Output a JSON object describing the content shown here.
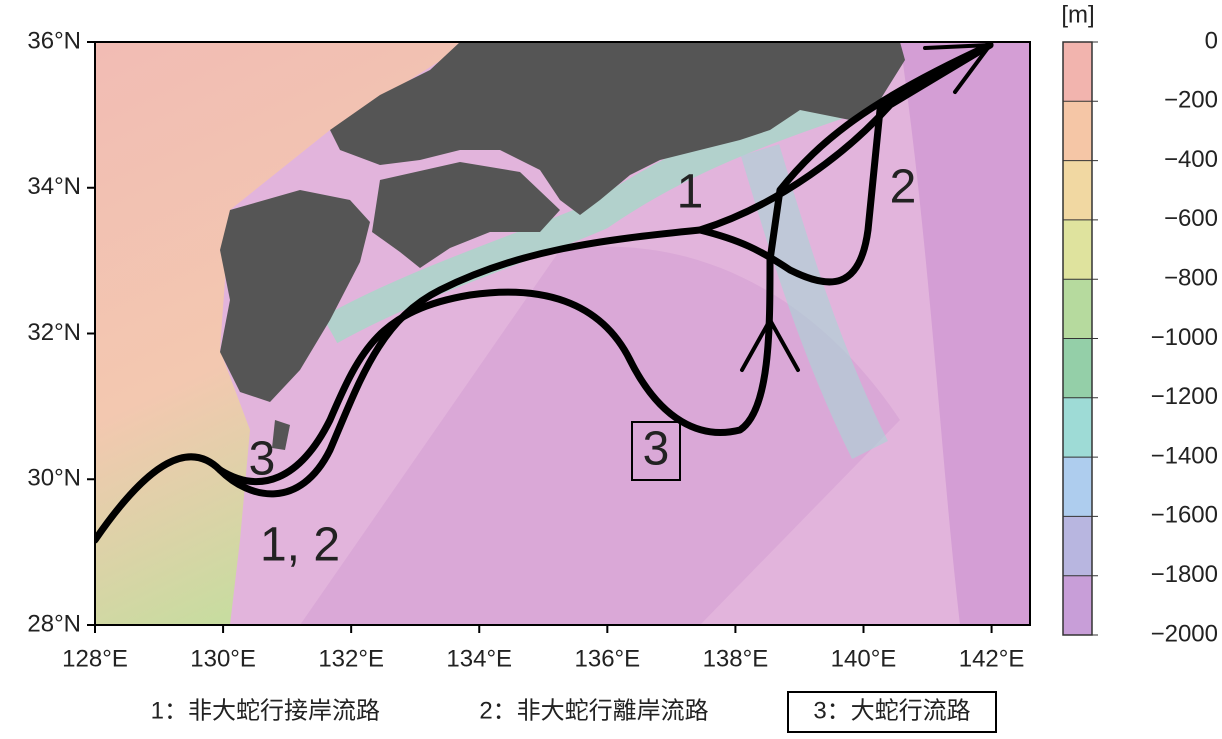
{
  "map": {
    "xlim": [
      128,
      142.6
    ],
    "ylim": [
      28,
      36
    ],
    "xticks": [
      {
        "value": 128,
        "label": "128°E"
      },
      {
        "value": 130,
        "label": "130°E"
      },
      {
        "value": 132,
        "label": "132°E"
      },
      {
        "value": 134,
        "label": "134°E"
      },
      {
        "value": 136,
        "label": "136°E"
      },
      {
        "value": 138,
        "label": "138°E"
      },
      {
        "value": 140,
        "label": "140°E"
      },
      {
        "value": 142,
        "label": "142°E"
      }
    ],
    "yticks": [
      {
        "value": 28,
        "label": "28°N"
      },
      {
        "value": 30,
        "label": "30°N"
      },
      {
        "value": 32,
        "label": "32°N"
      },
      {
        "value": 34,
        "label": "34°N"
      },
      {
        "value": 36,
        "label": "36°N"
      }
    ],
    "route_labels": [
      "1",
      "2",
      "3",
      "3",
      "1, 2"
    ],
    "colorbar": {
      "unit": "[m]",
      "lim": [
        -2000,
        0
      ],
      "ticks": [
        {
          "value": 0,
          "label": "0"
        },
        {
          "value": -200,
          "label": "−200"
        },
        {
          "value": -400,
          "label": "−400"
        },
        {
          "value": -600,
          "label": "−600"
        },
        {
          "value": -800,
          "label": "−800"
        },
        {
          "value": -1000,
          "label": "−1000"
        },
        {
          "value": -1200,
          "label": "−1200"
        },
        {
          "value": -1400,
          "label": "−1400"
        },
        {
          "value": -1600,
          "label": "−1600"
        },
        {
          "value": -1800,
          "label": "−1800"
        },
        {
          "value": -2000,
          "label": "−2000"
        }
      ],
      "colors": [
        "#f2b4ae",
        "#f5c6a6",
        "#f1d8a2",
        "#dfe39e",
        "#b6da9e",
        "#94cfa8",
        "#9edbd6",
        "#aecdee",
        "#b8b6e0",
        "#c89ed8",
        "#d890d6"
      ]
    },
    "legend": [
      "1：非大蛇行接岸流路",
      "2：非大蛇行離岸流路",
      "3：大蛇行流路"
    ]
  }
}
